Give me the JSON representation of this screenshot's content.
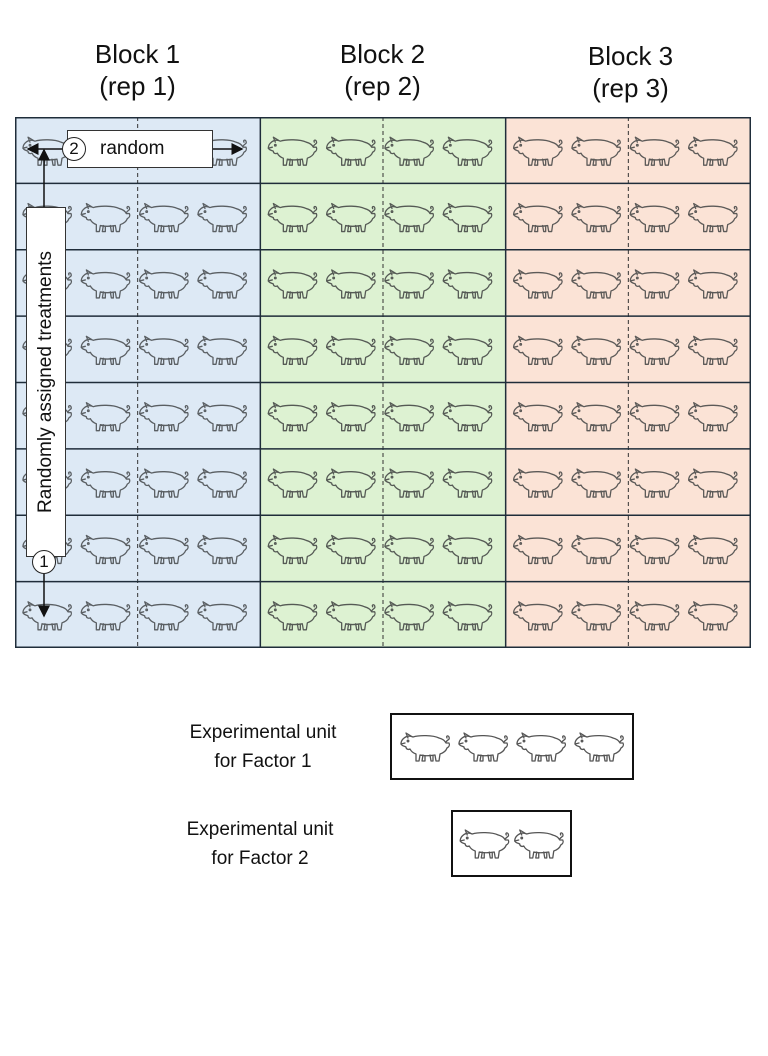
{
  "blocks": [
    {
      "name": "Block 1",
      "rep": "(rep 1)",
      "fill": "#dde9f5",
      "pig_color": "#5a5f63"
    },
    {
      "name": "Block 2",
      "rep": "(rep 2)",
      "fill": "#ddf2d2",
      "pig_color": "#555a55"
    },
    {
      "name": "Block 3",
      "rep": "(rep 3)",
      "fill": "#fbe3d6",
      "pig_color": "#5c5a58"
    }
  ],
  "rows_per_block": 8,
  "pigs_per_row": 4,
  "annotations": {
    "random_number": "2",
    "random_label": "random",
    "treatments_number": "1",
    "treatments_label": "Randomly assigned treatments"
  },
  "legend": [
    {
      "label": "Experimental unit\nfor Factor 1",
      "pig_count": 4
    },
    {
      "label": "Experimental unit\nfor Factor 2",
      "pig_count": 2
    }
  ],
  "colors": {
    "grid_border": "#1f2d3a",
    "divider": "#333333"
  },
  "icon": "pig-icon"
}
